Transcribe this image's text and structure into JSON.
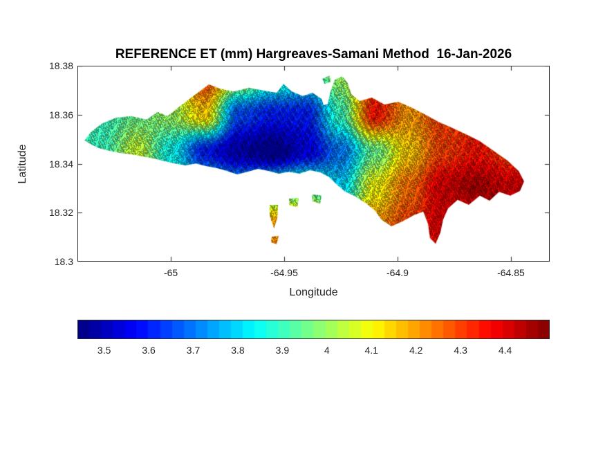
{
  "window": {
    "background": "#ffffff"
  },
  "chart_data": {
    "type": "filled_contour_map",
    "title": "REFERENCE ET (mm) Hargreaves-Samani Method  16-Jan-2026",
    "xlabel": "Longitude",
    "ylabel": "Latitude",
    "xlim": [
      -65.0412,
      -64.8329
    ],
    "ylim": [
      18.3,
      18.38
    ],
    "xticks": {
      "values": [
        -65,
        -64.95,
        -64.9,
        -64.85
      ],
      "labels": [
        "-65",
        "-64.95",
        "-64.9",
        "-64.85"
      ]
    },
    "yticks": {
      "values": [
        18.3,
        18.32,
        18.34,
        18.36,
        18.38
      ],
      "labels": [
        "18.3",
        "18.32",
        "18.34",
        "18.36",
        "18.38"
      ]
    },
    "grid": false,
    "colormap": "jet",
    "color_scale": {
      "min": 3.44,
      "max": 4.5,
      "levels": 40,
      "units": "mm"
    },
    "colorbar": {
      "orientation": "horizontal",
      "position": "bottom",
      "tick_values": [
        3.5,
        3.6,
        3.7,
        3.8,
        3.9,
        4,
        4.1,
        4.2,
        4.3,
        4.4
      ],
      "tick_labels": [
        "3.5",
        "3.6",
        "3.7",
        "3.8",
        "3.9",
        "4",
        "4.1",
        "4.2",
        "4.3",
        "4.4"
      ]
    },
    "island_polygons": [
      [
        [
          -65.0381,
          18.3495
        ],
        [
          -65.0351,
          18.3531
        ],
        [
          -65.0302,
          18.3565
        ],
        [
          -65.0241,
          18.3588
        ],
        [
          -65.0174,
          18.3594
        ],
        [
          -65.0107,
          18.358
        ],
        [
          -65.0058,
          18.3611
        ],
        [
          -65.0015,
          18.3594
        ],
        [
          -64.9954,
          18.3639
        ],
        [
          -64.9899,
          18.3678
        ],
        [
          -64.9832,
          18.3724
        ],
        [
          -64.9784,
          18.3707
        ],
        [
          -64.9723,
          18.3695
        ],
        [
          -64.9655,
          18.371
        ],
        [
          -64.9588,
          18.3698
        ],
        [
          -64.9533,
          18.369
        ],
        [
          -64.9503,
          18.3726
        ],
        [
          -64.9466,
          18.3695
        ],
        [
          -64.9418,
          18.3676
        ],
        [
          -64.9375,
          18.369
        ],
        [
          -64.9335,
          18.3664
        ],
        [
          -64.9326,
          18.3639
        ],
        [
          -64.9308,
          18.3644
        ],
        [
          -64.9296,
          18.3695
        ],
        [
          -64.9277,
          18.3743
        ],
        [
          -64.9244,
          18.3757
        ],
        [
          -64.922,
          18.3729
        ],
        [
          -64.9204,
          18.3684
        ],
        [
          -64.9168,
          18.3656
        ],
        [
          -64.9113,
          18.367
        ],
        [
          -64.9058,
          18.3642
        ],
        [
          -64.8997,
          18.3653
        ],
        [
          -64.8936,
          18.3628
        ],
        [
          -64.8881,
          18.3602
        ],
        [
          -64.882,
          18.3571
        ],
        [
          -64.8759,
          18.3546
        ],
        [
          -64.8698,
          18.352
        ],
        [
          -64.8637,
          18.3492
        ],
        [
          -64.8576,
          18.3452
        ],
        [
          -64.8515,
          18.3413
        ],
        [
          -64.8466,
          18.337
        ],
        [
          -64.8442,
          18.3328
        ],
        [
          -64.846,
          18.3288
        ],
        [
          -64.8503,
          18.3269
        ],
        [
          -64.8552,
          18.3285
        ],
        [
          -64.8594,
          18.3249
        ],
        [
          -64.8637,
          18.3269
        ],
        [
          -64.8686,
          18.3232
        ],
        [
          -64.8735,
          18.3252
        ],
        [
          -64.8777,
          18.3218
        ],
        [
          -64.8799,
          18.3172
        ],
        [
          -64.8811,
          18.3119
        ],
        [
          -64.8832,
          18.3073
        ],
        [
          -64.8857,
          18.3096
        ],
        [
          -64.8866,
          18.3155
        ],
        [
          -64.8887,
          18.3204
        ],
        [
          -64.893,
          18.3189
        ],
        [
          -64.8979,
          18.3164
        ],
        [
          -64.9027,
          18.3144
        ],
        [
          -64.907,
          18.317
        ],
        [
          -64.9101,
          18.3209
        ],
        [
          -64.9137,
          18.3237
        ],
        [
          -64.9186,
          18.3266
        ],
        [
          -64.9235,
          18.3288
        ],
        [
          -64.9271,
          18.3317
        ],
        [
          -64.9302,
          18.3345
        ],
        [
          -64.9341,
          18.3365
        ],
        [
          -64.9387,
          18.3373
        ],
        [
          -64.9433,
          18.3359
        ],
        [
          -64.9479,
          18.3367
        ],
        [
          -64.9524,
          18.3359
        ],
        [
          -64.957,
          18.337
        ],
        [
          -64.9616,
          18.3379
        ],
        [
          -64.9662,
          18.3367
        ],
        [
          -64.9707,
          18.3356
        ],
        [
          -64.9753,
          18.337
        ],
        [
          -64.9799,
          18.3382
        ],
        [
          -64.9845,
          18.339
        ],
        [
          -64.989,
          18.3401
        ],
        [
          -64.9936,
          18.3393
        ],
        [
          -64.9982,
          18.3401
        ],
        [
          -65.0027,
          18.341
        ],
        [
          -65.0076,
          18.3421
        ],
        [
          -65.0125,
          18.343
        ],
        [
          -65.0174,
          18.3438
        ],
        [
          -65.0223,
          18.3444
        ],
        [
          -65.0271,
          18.3452
        ],
        [
          -65.032,
          18.3464
        ],
        [
          -65.0357,
          18.3481
        ]
      ],
      [
        [
          -64.9564,
          18.3232
        ],
        [
          -64.9527,
          18.3232
        ],
        [
          -64.953,
          18.3178
        ],
        [
          -64.9545,
          18.3136
        ],
        [
          -64.9564,
          18.3187
        ]
      ],
      [
        [
          -64.9555,
          18.3102
        ],
        [
          -64.9524,
          18.3105
        ],
        [
          -64.9533,
          18.3071
        ],
        [
          -64.9558,
          18.3079
        ]
      ],
      [
        [
          -64.9479,
          18.3257
        ],
        [
          -64.9436,
          18.326
        ],
        [
          -64.9442,
          18.3223
        ],
        [
          -64.9476,
          18.3229
        ]
      ],
      [
        [
          -64.9378,
          18.3274
        ],
        [
          -64.9335,
          18.3271
        ],
        [
          -64.9341,
          18.3237
        ],
        [
          -64.9375,
          18.3246
        ]
      ],
      [
        [
          -64.9332,
          18.3746
        ],
        [
          -64.9301,
          18.376
        ],
        [
          -64.9292,
          18.3735
        ],
        [
          -64.9323,
          18.3726
        ]
      ]
    ],
    "et_grid": {
      "lon": [
        -65.045,
        -65.03,
        -65.015,
        -65.0,
        -64.985,
        -64.97,
        -64.955,
        -64.94,
        -64.925,
        -64.91,
        -64.895,
        -64.88,
        -64.865,
        -64.85,
        -64.835
      ],
      "lat": [
        18.3,
        18.315,
        18.33,
        18.345,
        18.36,
        18.375
      ],
      "values_mm": [
        [
          4.0,
          4.0,
          3.95,
          3.95,
          3.9,
          4.0,
          4.25,
          4.2,
          4.15,
          4.25,
          4.35,
          4.3,
          4.3,
          4.35,
          4.4
        ],
        [
          4.0,
          3.95,
          3.95,
          3.9,
          3.9,
          3.95,
          4.2,
          4.2,
          4.1,
          4.2,
          4.3,
          4.4,
          4.35,
          4.4,
          4.4
        ],
        [
          3.95,
          3.95,
          3.9,
          3.85,
          3.82,
          3.8,
          3.9,
          3.95,
          3.8,
          4.1,
          4.25,
          4.4,
          4.45,
          4.4,
          4.45
        ],
        [
          3.9,
          3.9,
          4.05,
          3.85,
          3.6,
          3.5,
          3.45,
          3.55,
          3.7,
          3.95,
          4.15,
          4.3,
          4.35,
          4.3,
          4.4
        ],
        [
          3.95,
          3.9,
          3.95,
          4.0,
          4.15,
          3.65,
          3.6,
          3.6,
          3.9,
          4.35,
          4.2,
          4.3,
          4.3,
          4.35,
          4.4
        ],
        [
          4.0,
          3.95,
          4.0,
          4.1,
          4.3,
          4.05,
          3.9,
          3.85,
          4.0,
          4.3,
          4.25,
          4.3,
          4.35,
          4.35,
          4.4
        ]
      ]
    }
  }
}
